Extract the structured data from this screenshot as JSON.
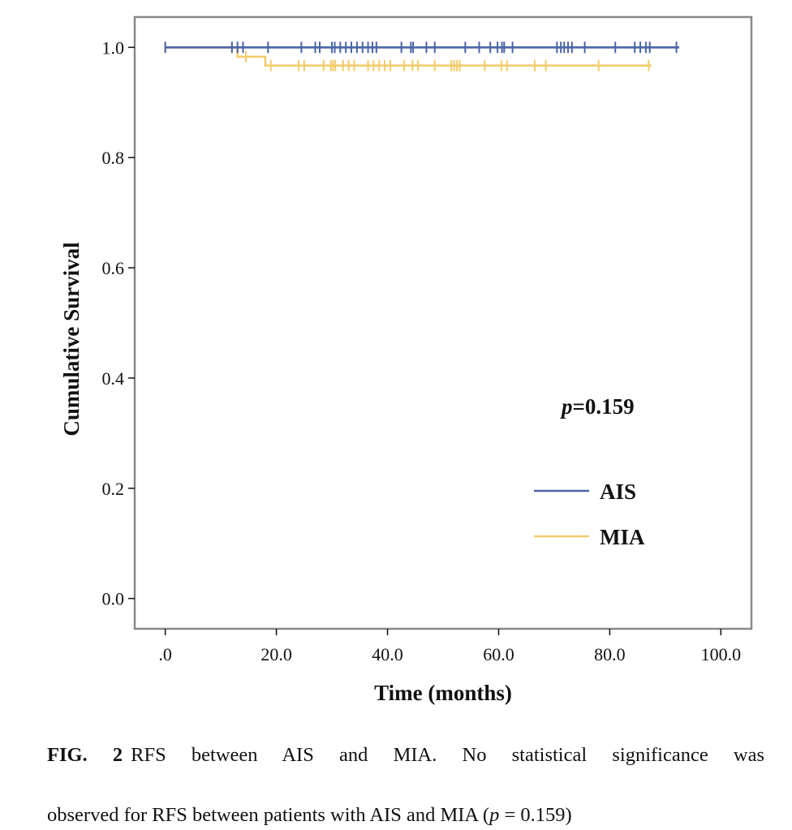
{
  "chart_data": {
    "type": "line",
    "subtype": "kaplan-meier",
    "xlabel": "Time (months)",
    "ylabel": "Cumulative Survival",
    "xlim": [
      -5.5,
      105.5
    ],
    "ylim": [
      -0.055,
      1.055
    ],
    "x_ticks": [
      0,
      20,
      40,
      60,
      80,
      100
    ],
    "x_tick_labels": [
      ".0",
      "20.0",
      "40.0",
      "60.0",
      "80.0",
      "100.0"
    ],
    "y_ticks": [
      0,
      0.2,
      0.4,
      0.6,
      0.8,
      1.0
    ],
    "y_tick_labels": [
      "0.0",
      "0.2",
      "0.4",
      "0.6",
      "0.8",
      "1.0"
    ],
    "grid": false,
    "legend_position": "lower-right",
    "annotation": {
      "p_label": "p",
      "p_value": "=0.159"
    },
    "series": [
      {
        "name": "AIS",
        "color": "#4a64a8",
        "steps": [
          [
            0,
            1.0
          ],
          [
            92.5,
            1.0
          ]
        ],
        "censored": [
          {
            "x": 0,
            "y": 1.0
          },
          {
            "x": 12,
            "y": 1.0
          },
          {
            "x": 13,
            "y": 1.0
          },
          {
            "x": 14,
            "y": 1.0
          },
          {
            "x": 18.5,
            "y": 1.0
          },
          {
            "x": 24.5,
            "y": 1.0
          },
          {
            "x": 27,
            "y": 1.0
          },
          {
            "x": 27.8,
            "y": 1.0
          },
          {
            "x": 30,
            "y": 1.0
          },
          {
            "x": 30.5,
            "y": 1.0
          },
          {
            "x": 31.5,
            "y": 1.0
          },
          {
            "x": 32.5,
            "y": 1.0
          },
          {
            "x": 33.5,
            "y": 1.0
          },
          {
            "x": 34.5,
            "y": 1.0
          },
          {
            "x": 35.5,
            "y": 1.0
          },
          {
            "x": 36.5,
            "y": 1.0
          },
          {
            "x": 37.3,
            "y": 1.0
          },
          {
            "x": 38,
            "y": 1.0
          },
          {
            "x": 42.5,
            "y": 1.0
          },
          {
            "x": 44.2,
            "y": 1.0
          },
          {
            "x": 44.6,
            "y": 1.0
          },
          {
            "x": 47,
            "y": 1.0
          },
          {
            "x": 48.5,
            "y": 1.0
          },
          {
            "x": 54,
            "y": 1.0
          },
          {
            "x": 56.5,
            "y": 1.0
          },
          {
            "x": 58.5,
            "y": 1.0
          },
          {
            "x": 59.8,
            "y": 1.0
          },
          {
            "x": 60.6,
            "y": 1.0
          },
          {
            "x": 61,
            "y": 1.0
          },
          {
            "x": 62.5,
            "y": 1.0
          },
          {
            "x": 70.5,
            "y": 1.0
          },
          {
            "x": 71.2,
            "y": 1.0
          },
          {
            "x": 71.8,
            "y": 1.0
          },
          {
            "x": 72.5,
            "y": 1.0
          },
          {
            "x": 73.2,
            "y": 1.0
          },
          {
            "x": 75.5,
            "y": 1.0
          },
          {
            "x": 81,
            "y": 1.0
          },
          {
            "x": 84.5,
            "y": 1.0
          },
          {
            "x": 85.5,
            "y": 1.0
          },
          {
            "x": 86.5,
            "y": 1.0
          },
          {
            "x": 87.2,
            "y": 1.0
          },
          {
            "x": 92,
            "y": 1.0
          }
        ]
      },
      {
        "name": "MIA",
        "color": "#f2cc6a",
        "steps": [
          [
            0,
            1.0
          ],
          [
            13,
            1.0
          ],
          [
            13,
            0.983
          ],
          [
            18,
            0.983
          ],
          [
            18,
            0.967
          ],
          [
            87.5,
            0.967
          ]
        ],
        "censored": [
          {
            "x": 0,
            "y": 1.0
          },
          {
            "x": 12,
            "y": 1.0
          },
          {
            "x": 14.5,
            "y": 0.983
          },
          {
            "x": 19,
            "y": 0.967
          },
          {
            "x": 24,
            "y": 0.967
          },
          {
            "x": 25,
            "y": 0.967
          },
          {
            "x": 28.5,
            "y": 0.967
          },
          {
            "x": 29.8,
            "y": 0.967
          },
          {
            "x": 30.2,
            "y": 0.967
          },
          {
            "x": 30.6,
            "y": 0.967
          },
          {
            "x": 32,
            "y": 0.967
          },
          {
            "x": 33,
            "y": 0.967
          },
          {
            "x": 34,
            "y": 0.967
          },
          {
            "x": 36.5,
            "y": 0.967
          },
          {
            "x": 37.5,
            "y": 0.967
          },
          {
            "x": 38.5,
            "y": 0.967
          },
          {
            "x": 39.5,
            "y": 0.967
          },
          {
            "x": 40.5,
            "y": 0.967
          },
          {
            "x": 43,
            "y": 0.967
          },
          {
            "x": 44.5,
            "y": 0.967
          },
          {
            "x": 45.5,
            "y": 0.967
          },
          {
            "x": 48.5,
            "y": 0.967
          },
          {
            "x": 51.5,
            "y": 0.967
          },
          {
            "x": 52,
            "y": 0.967
          },
          {
            "x": 52.5,
            "y": 0.967
          },
          {
            "x": 53,
            "y": 0.967
          },
          {
            "x": 57.5,
            "y": 0.967
          },
          {
            "x": 60.5,
            "y": 0.967
          },
          {
            "x": 61.5,
            "y": 0.967
          },
          {
            "x": 66.5,
            "y": 0.967
          },
          {
            "x": 68.5,
            "y": 0.967
          },
          {
            "x": 78,
            "y": 0.967
          },
          {
            "x": 87,
            "y": 0.967
          }
        ]
      }
    ]
  },
  "caption": {
    "label": "FIG. 2",
    "line1": "RFS between AIS and MIA. No statistical significance was",
    "line2_pre": "observed for RFS between patients with AIS and MIA (",
    "line2_p": "p",
    "line2_post": " = 0.159)"
  }
}
